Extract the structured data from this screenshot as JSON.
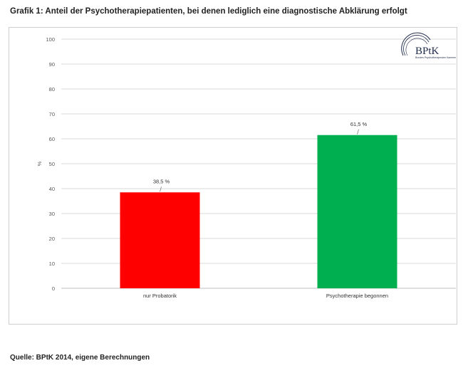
{
  "title": "Grafik 1: Anteil der Psychotherapiepatienten, bei denen lediglich eine diagnostische Abklärung erfolgt",
  "source": "Quelle: BPtK 2014, eigene Berechnungen",
  "logo": {
    "text": "BPtK",
    "subtext": "Bundes Psychotherapeuten Kammer"
  },
  "chart_data": {
    "type": "bar",
    "categories": [
      "nur Probatorik",
      "Psychotherapie begonnen"
    ],
    "values": [
      38.5,
      61.5
    ],
    "data_labels": [
      "38,5 %",
      "61,5 %"
    ],
    "colors": [
      "#ff0000",
      "#00b050"
    ],
    "ylabel": "%",
    "ylim": [
      0,
      100
    ],
    "yticks": [
      0,
      10,
      20,
      30,
      40,
      50,
      60,
      70,
      80,
      90,
      100
    ],
    "grid": true
  }
}
